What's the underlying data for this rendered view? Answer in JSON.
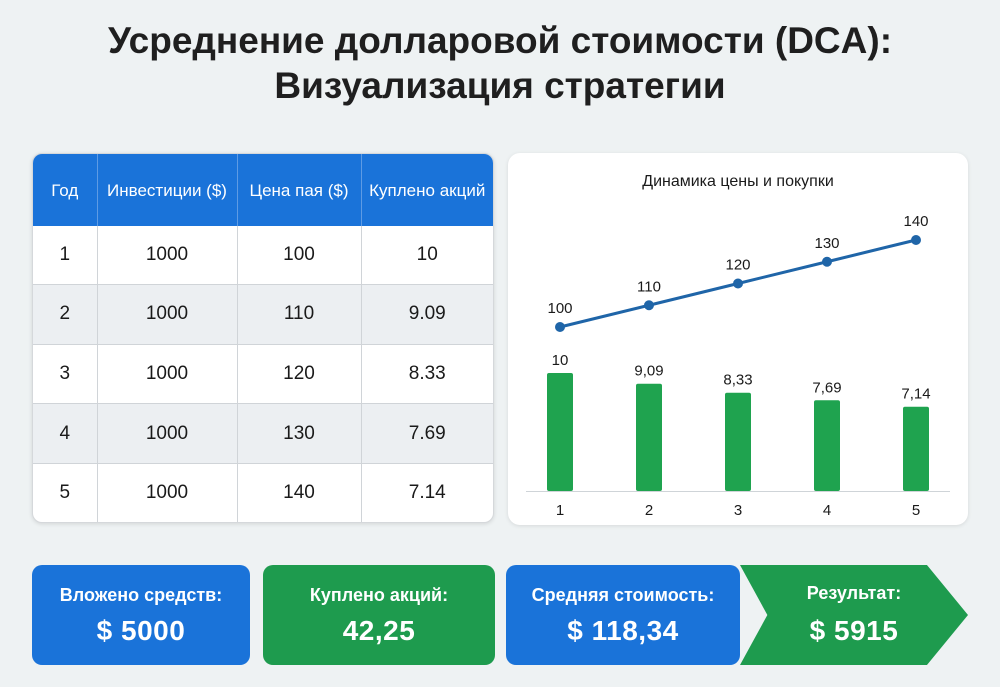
{
  "title": {
    "line1": "Усреднение долларовой стоимости (DCA):",
    "line2": "Визуализация стратегии"
  },
  "table": {
    "headers": [
      "Год",
      "Инвестиции ($)",
      "Цена пая ($)",
      "Куплено акций"
    ],
    "rows": [
      [
        "1",
        "1000",
        "100",
        "10"
      ],
      [
        "2",
        "1000",
        "110",
        "9.09"
      ],
      [
        "3",
        "1000",
        "120",
        "8.33"
      ],
      [
        "4",
        "1000",
        "130",
        "7.69"
      ],
      [
        "5",
        "1000",
        "140",
        "7.14"
      ]
    ]
  },
  "chart_data": {
    "type": "bar",
    "title": "Динамика цены и покупки",
    "categories": [
      "1",
      "2",
      "3",
      "4",
      "5"
    ],
    "series": [
      {
        "type": "line",
        "values": [
          100,
          110,
          120,
          130,
          140
        ],
        "labels": [
          "100",
          "110",
          "120",
          "130",
          "140"
        ],
        "color": "#1f65a8"
      },
      {
        "type": "bar",
        "values": [
          10,
          9.09,
          8.33,
          7.69,
          7.14
        ],
        "labels": [
          "10",
          "9,09",
          "8,33",
          "7,69",
          "7,14"
        ],
        "color": "#1fa34f"
      }
    ],
    "xlabel": "",
    "ylabel": "",
    "grid": false,
    "legend": "none"
  },
  "summary": {
    "invested_label": "Вложено средств:",
    "invested_value": "$ 5000",
    "shares_label": "Куплено акций:",
    "shares_value": "42,25",
    "avg_label": "Средняя стоимость:",
    "avg_value": "$ 118,34",
    "result_label": "Результат:",
    "result_value": "$ 5915"
  },
  "colors": {
    "blue": "#1a73d9",
    "green": "#1e9b4e",
    "line": "#1f65a8",
    "bar": "#1fa34f"
  }
}
